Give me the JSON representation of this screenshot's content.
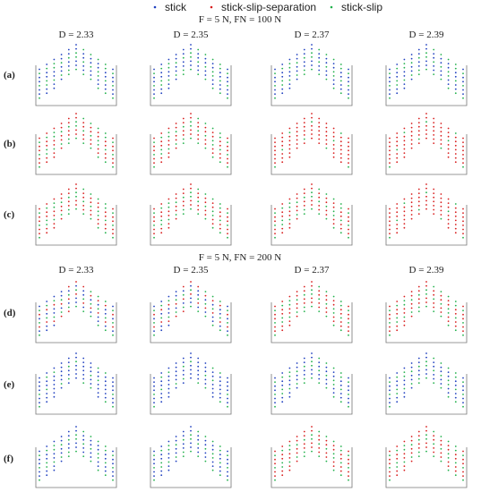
{
  "legend": [
    {
      "label": "stick",
      "color": "#1f3fbf"
    },
    {
      "label": "stick-slip-separation",
      "color": "#d81e1e"
    },
    {
      "label": "stick-slip",
      "color": "#22b14c"
    }
  ],
  "panel_titles": {
    "top": "F = 5 N, FN = 100 N",
    "bottom": "F = 5 N, FN = 200 N"
  },
  "column_headers": [
    "D = 2.33",
    "D = 2.35",
    "D = 2.37",
    "D = 2.39"
  ],
  "row_labels": [
    "(a)",
    "(b)",
    "(c)",
    "(d)",
    "(e)",
    "(f)"
  ],
  "row_states": [
    [
      "mix-bg",
      "mix-bg",
      "mix-bg",
      "mix-bg"
    ],
    [
      "mix-rg",
      "mix-rg",
      "red",
      "red"
    ],
    [
      "mix-rg",
      "mix-rg",
      "mix-rg",
      "red"
    ],
    [
      "mix-brg",
      "mix-brg",
      "mix-rg",
      "mix-rg"
    ],
    [
      "mix-b",
      "mix-b",
      "mix-bg",
      "mix-bg"
    ],
    [
      "mix-bg",
      "mix-bg",
      "mix-rg",
      "mix-rg"
    ]
  ]
}
